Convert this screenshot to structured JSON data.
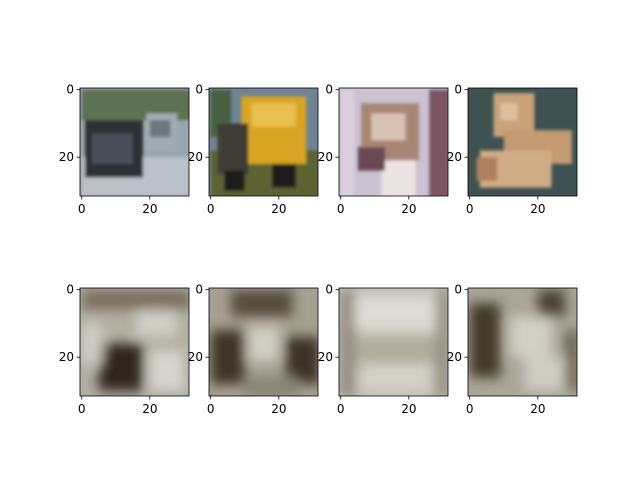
{
  "chart_data": [
    {
      "type": "image",
      "xlim": [
        -0.5,
        31.5
      ],
      "ylim": [
        31.5,
        -0.5
      ],
      "xticks": [
        0,
        20
      ],
      "yticks": [
        0,
        20
      ]
    },
    {
      "type": "image",
      "xlim": [
        -0.5,
        31.5
      ],
      "ylim": [
        31.5,
        -0.5
      ],
      "xticks": [
        0,
        20
      ],
      "yticks": [
        0,
        20
      ]
    },
    {
      "type": "image",
      "xlim": [
        -0.5,
        31.5
      ],
      "ylim": [
        31.5,
        -0.5
      ],
      "xticks": [
        0,
        20
      ],
      "yticks": [
        0,
        20
      ]
    },
    {
      "type": "image",
      "xlim": [
        -0.5,
        31.5
      ],
      "ylim": [
        31.5,
        -0.5
      ],
      "xticks": [
        0,
        20
      ],
      "yticks": [
        0,
        20
      ]
    },
    {
      "type": "image",
      "xlim": [
        -0.5,
        31.5
      ],
      "ylim": [
        31.5,
        -0.5
      ],
      "xticks": [
        0,
        20
      ],
      "yticks": [
        0,
        20
      ]
    },
    {
      "type": "image",
      "xlim": [
        -0.5,
        31.5
      ],
      "ylim": [
        31.5,
        -0.5
      ],
      "xticks": [
        0,
        20
      ],
      "yticks": [
        0,
        20
      ]
    },
    {
      "type": "image",
      "xlim": [
        -0.5,
        31.5
      ],
      "ylim": [
        31.5,
        -0.5
      ],
      "xticks": [
        0,
        20
      ],
      "yticks": [
        0,
        20
      ]
    },
    {
      "type": "image",
      "xlim": [
        -0.5,
        31.5
      ],
      "ylim": [
        31.5,
        -0.5
      ],
      "xticks": [
        0,
        20
      ],
      "yticks": [
        0,
        20
      ]
    }
  ]
}
